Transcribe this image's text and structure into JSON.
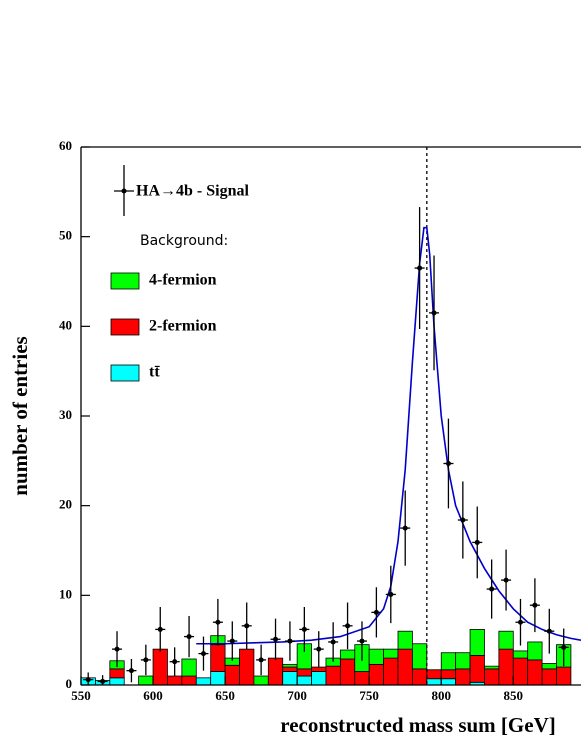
{
  "chart_data": {
    "type": "histogram",
    "xlabel": "reconstructed mass sum [GeV]",
    "ylabel": "number of entries",
    "xlim": [
      550,
      897
    ],
    "ylim": [
      0,
      60
    ],
    "xticks": [
      550,
      600,
      650,
      700,
      750,
      800,
      850
    ],
    "yticks": [
      0,
      10,
      20,
      30,
      40,
      50,
      60
    ],
    "bins": [
      550,
      560,
      570,
      580,
      590,
      600,
      610,
      620,
      630,
      640,
      650,
      660,
      670,
      680,
      690,
      700,
      710,
      720,
      730,
      740,
      750,
      760,
      770,
      780,
      790,
      800,
      810,
      820,
      830,
      840,
      850,
      860,
      870,
      880,
      890
    ],
    "series": [
      {
        "name": "tt̄",
        "color": "#00ffff",
        "values": [
          0.8,
          0.5,
          0.8,
          0,
          0,
          0,
          0,
          0,
          0.8,
          1.5,
          0,
          0,
          0,
          0,
          1.5,
          1.0,
          1.5,
          0,
          0,
          0,
          0,
          0,
          0,
          0,
          0.7,
          0.7,
          0,
          0.3,
          0,
          0,
          0,
          0,
          0,
          0
        ]
      },
      {
        "name": "2-fermion",
        "color": "#ff0000",
        "values": [
          0,
          0,
          1.0,
          0,
          0,
          4.0,
          1.0,
          1.0,
          0,
          3.0,
          2.2,
          4.0,
          0,
          3.0,
          0.5,
          0.8,
          0.5,
          2.1,
          2.9,
          1.5,
          2.3,
          3.0,
          4.0,
          1.8,
          1.0,
          1.0,
          1.8,
          3.0,
          1.8,
          4.0,
          3.0,
          2.8,
          1.8,
          2.0
        ]
      },
      {
        "name": "4-fermion",
        "color": "#00ff00",
        "values": [
          0,
          0,
          0.9,
          0,
          1.0,
          0,
          0,
          1.9,
          0,
          1.0,
          0.8,
          0,
          1.0,
          0,
          0.3,
          2.8,
          0,
          0.9,
          1.0,
          3.0,
          1.7,
          1.0,
          2.0,
          2.8,
          0,
          1.9,
          1.8,
          2.9,
          0.3,
          2.0,
          0.8,
          2.0,
          0.6,
          2.5
        ]
      }
    ],
    "background_label": "Background:",
    "signal": {
      "name": "HA→4b - Signal",
      "color": "#000000",
      "x": [
        555,
        565,
        575,
        585,
        595,
        605,
        615,
        625,
        635,
        645,
        655,
        665,
        675,
        685,
        695,
        705,
        715,
        725,
        735,
        745,
        755,
        765,
        775,
        785,
        795,
        805,
        815,
        825,
        835,
        845,
        855,
        865,
        875,
        885
      ],
      "values": [
        0.6,
        0.4,
        4.0,
        1.6,
        2.8,
        6.2,
        2.6,
        5.4,
        3.5,
        7.0,
        4.9,
        6.6,
        2.8,
        5.1,
        4.9,
        6.2,
        4.0,
        4.8,
        6.6,
        4.9,
        8.1,
        10.1,
        17.5,
        46.5,
        41.5,
        24.7,
        18.4,
        15.9,
        10.7,
        11.7,
        7.0,
        8.9,
        6.0,
        4.2
      ],
      "errors": [
        0.8,
        0.7,
        2.0,
        1.3,
        1.7,
        2.5,
        1.6,
        2.3,
        1.9,
        2.6,
        2.2,
        2.6,
        1.7,
        2.3,
        2.2,
        2.5,
        2.0,
        2.2,
        2.6,
        2.2,
        2.8,
        3.2,
        4.2,
        6.8,
        6.4,
        5.0,
        4.3,
        4.0,
        3.3,
        3.4,
        2.6,
        3.0,
        2.5,
        2.1
      ]
    },
    "fit": {
      "color": "#0000cc",
      "x": [
        630,
        650,
        670,
        690,
        710,
        730,
        750,
        760,
        765,
        770,
        775,
        780,
        785,
        788,
        790,
        792,
        795,
        800,
        805,
        810,
        815,
        820,
        830,
        840,
        850,
        860,
        870,
        880,
        890,
        897
      ],
      "values": [
        4.6,
        4.6,
        4.7,
        4.8,
        5.0,
        5.4,
        6.5,
        8.5,
        11,
        16,
        24,
        36,
        47,
        51,
        51,
        48,
        40,
        30,
        24,
        20,
        18,
        16,
        13,
        10.5,
        8.5,
        7,
        6.2,
        5.6,
        5.2,
        5.0
      ]
    },
    "reference_x": 790
  }
}
